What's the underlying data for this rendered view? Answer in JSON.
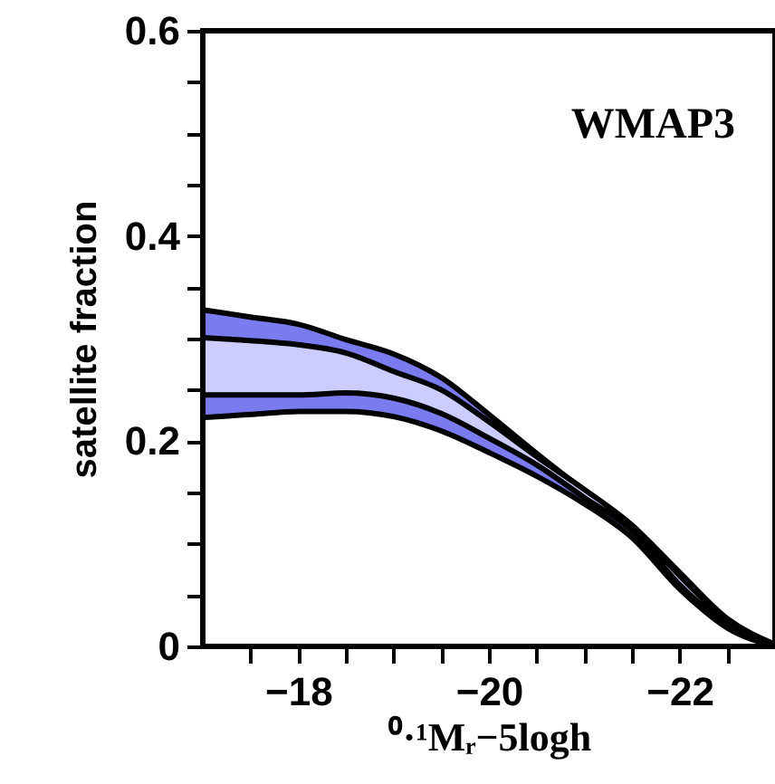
{
  "chart_data": {
    "type": "area",
    "x": [
      -17,
      -17.5,
      -18,
      -18.5,
      -19,
      -19.5,
      -20,
      -20.5,
      -21,
      -21.5,
      -22,
      -22.5,
      -23
    ],
    "series": [
      {
        "color": "#7b7bf0",
        "values": [
          null,
          null,
          null,
          null,
          null,
          null,
          null,
          null,
          null,
          null,
          null,
          null,
          null
        ],
        "upper": [
          0.328,
          0.321,
          0.314,
          0.299,
          0.285,
          0.262,
          0.226,
          0.188,
          0.152,
          0.118,
          0.072,
          0.027,
          0.002
        ],
        "lower": [
          0.223,
          0.226,
          0.229,
          0.229,
          0.224,
          0.21,
          0.189,
          0.166,
          0.139,
          0.106,
          0.056,
          0.018,
          0.0
        ]
      },
      {
        "color": "#ccccff",
        "values": [
          null,
          null,
          null,
          null,
          null,
          null,
          null,
          null,
          null,
          null,
          null,
          null,
          null
        ],
        "upper": [
          0.301,
          0.298,
          0.294,
          0.286,
          0.268,
          0.25,
          0.219,
          0.185,
          0.153,
          0.118,
          0.069,
          0.025,
          0.001
        ],
        "lower": [
          0.245,
          0.245,
          0.245,
          0.247,
          0.242,
          0.227,
          0.203,
          0.177,
          0.145,
          0.113,
          0.06,
          0.021,
          0.0
        ]
      }
    ],
    "xlim": [
      -17,
      -23
    ],
    "xticks": [
      {
        "value": -17.5,
        "label": null
      },
      -18,
      {
        "value": -18.5,
        "label": null
      },
      {
        "value": -19,
        "label": null
      },
      {
        "value": -19.5,
        "label": null
      },
      -20,
      {
        "value": -20.5,
        "label": null
      },
      {
        "value": -21,
        "label": null
      },
      {
        "value": -21.5,
        "label": null
      },
      -22,
      {
        "value": -22.5,
        "label": null
      }
    ],
    "ylim": [
      0,
      0.6
    ],
    "yticks": [
      0,
      {
        "value": 0.05,
        "label": null
      },
      {
        "value": 0.1,
        "label": null
      },
      {
        "value": 0.15,
        "label": null
      },
      0.2,
      {
        "value": 0.25,
        "label": null
      },
      {
        "value": 0.3,
        "label": null
      },
      {
        "value": 0.35,
        "label": null
      },
      0.4,
      {
        "value": 0.45,
        "label": null
      },
      {
        "value": 0.5,
        "label": null
      },
      {
        "value": 0.55,
        "label": null
      },
      0.6
    ],
    "xlabel": "⁰·¹Mᵣ−5logh",
    "ylabel": "satellite fraction",
    "annotations": [
      "WMAP3"
    ],
    "grid": false
  }
}
